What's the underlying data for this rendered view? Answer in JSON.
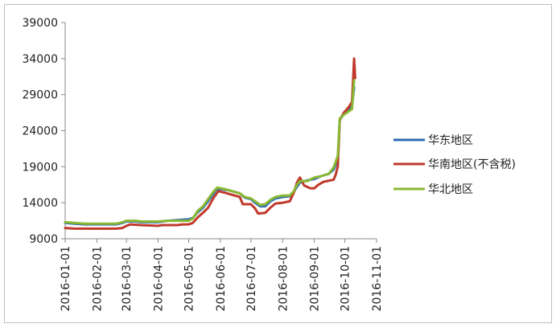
{
  "chart_data": {
    "type": "line",
    "title": "",
    "xlabel": "",
    "ylabel": "",
    "ylim": [
      9000,
      39000
    ],
    "y_ticks": [
      "9000",
      "14000",
      "19000",
      "24000",
      "29000",
      "34000",
      "39000"
    ],
    "x_ticks": [
      "2016-01-01",
      "2016-02-01",
      "2016-03-01",
      "2016-04-01",
      "2016-05-01",
      "2016-06-01",
      "2016-07-01",
      "2016-08-01",
      "2016-09-01",
      "2016-10-01",
      "2016-11-01"
    ],
    "grid": false,
    "legend_position": "right",
    "series": [
      {
        "name": "华东地区",
        "color": "#2e6db4",
        "points": [
          [
            "2016-01-01",
            11200
          ],
          [
            "2016-01-10",
            11100
          ],
          [
            "2016-01-20",
            11000
          ],
          [
            "2016-02-01",
            11000
          ],
          [
            "2016-02-20",
            11000
          ],
          [
            "2016-02-26",
            11200
          ],
          [
            "2016-03-01",
            11400
          ],
          [
            "2016-03-10",
            11400
          ],
          [
            "2016-03-15",
            11300
          ],
          [
            "2016-04-01",
            11300
          ],
          [
            "2016-04-10",
            11500
          ],
          [
            "2016-04-20",
            11600
          ],
          [
            "2016-05-01",
            11700
          ],
          [
            "2016-05-05",
            11900
          ],
          [
            "2016-05-10",
            12700
          ],
          [
            "2016-05-15",
            13300
          ],
          [
            "2016-05-20",
            14200
          ],
          [
            "2016-05-25",
            15200
          ],
          [
            "2016-05-28",
            15800
          ],
          [
            "2016-06-01",
            15900
          ],
          [
            "2016-06-10",
            15700
          ],
          [
            "2016-06-20",
            15300
          ],
          [
            "2016-06-25",
            14700
          ],
          [
            "2016-07-01",
            14500
          ],
          [
            "2016-07-05",
            14000
          ],
          [
            "2016-07-10",
            13500
          ],
          [
            "2016-07-15",
            13500
          ],
          [
            "2016-07-20",
            14200
          ],
          [
            "2016-07-25",
            14600
          ],
          [
            "2016-08-01",
            14800
          ],
          [
            "2016-08-08",
            14900
          ],
          [
            "2016-08-12",
            15500
          ],
          [
            "2016-08-15",
            16200
          ],
          [
            "2016-08-18",
            16800
          ],
          [
            "2016-08-25",
            17100
          ],
          [
            "2016-09-01",
            17300
          ],
          [
            "2016-09-08",
            17700
          ],
          [
            "2016-09-15",
            18000
          ],
          [
            "2016-09-20",
            18600
          ],
          [
            "2016-09-24",
            20000
          ],
          [
            "2016-09-26",
            25500
          ],
          [
            "2016-09-30",
            26300
          ],
          [
            "2016-10-05",
            27000
          ],
          [
            "2016-10-08",
            27500
          ],
          [
            "2016-10-10",
            30000
          ]
        ]
      },
      {
        "name": "华南地区(不含税)",
        "color": "#c0392b",
        "points": [
          [
            "2016-01-01",
            10500
          ],
          [
            "2016-01-10",
            10400
          ],
          [
            "2016-02-01",
            10400
          ],
          [
            "2016-02-20",
            10400
          ],
          [
            "2016-02-26",
            10500
          ],
          [
            "2016-03-01",
            10800
          ],
          [
            "2016-03-05",
            11000
          ],
          [
            "2016-03-15",
            10900
          ],
          [
            "2016-04-01",
            10800
          ],
          [
            "2016-04-05",
            10900
          ],
          [
            "2016-04-20",
            10900
          ],
          [
            "2016-04-25",
            11000
          ],
          [
            "2016-05-01",
            11000
          ],
          [
            "2016-05-05",
            11200
          ],
          [
            "2016-05-10",
            12000
          ],
          [
            "2016-05-15",
            12600
          ],
          [
            "2016-05-20",
            13300
          ],
          [
            "2016-05-25",
            14600
          ],
          [
            "2016-05-30",
            15600
          ],
          [
            "2016-06-05",
            15400
          ],
          [
            "2016-06-15",
            15000
          ],
          [
            "2016-06-20",
            14800
          ],
          [
            "2016-06-23",
            13800
          ],
          [
            "2016-07-01",
            13800
          ],
          [
            "2016-07-05",
            13200
          ],
          [
            "2016-07-08",
            12500
          ],
          [
            "2016-07-15",
            12600
          ],
          [
            "2016-07-20",
            13300
          ],
          [
            "2016-07-25",
            13900
          ],
          [
            "2016-08-01",
            14000
          ],
          [
            "2016-08-08",
            14200
          ],
          [
            "2016-08-12",
            15400
          ],
          [
            "2016-08-15",
            16800
          ],
          [
            "2016-08-18",
            17500
          ],
          [
            "2016-08-22",
            16400
          ],
          [
            "2016-08-28",
            16000
          ],
          [
            "2016-09-01",
            16000
          ],
          [
            "2016-09-05",
            16500
          ],
          [
            "2016-09-10",
            16900
          ],
          [
            "2016-09-20",
            17200
          ],
          [
            "2016-09-22",
            17900
          ],
          [
            "2016-09-24",
            19000
          ],
          [
            "2016-09-26",
            25500
          ],
          [
            "2016-09-30",
            26500
          ],
          [
            "2016-10-05",
            27300
          ],
          [
            "2016-10-08",
            28000
          ],
          [
            "2016-10-10",
            34000
          ],
          [
            "2016-10-11",
            31300
          ]
        ]
      },
      {
        "name": "华北地区",
        "color": "#8ab832",
        "points": [
          [
            "2016-01-01",
            11300
          ],
          [
            "2016-01-10",
            11200
          ],
          [
            "2016-01-20",
            11100
          ],
          [
            "2016-02-01",
            11100
          ],
          [
            "2016-02-20",
            11100
          ],
          [
            "2016-02-26",
            11300
          ],
          [
            "2016-03-01",
            11500
          ],
          [
            "2016-03-10",
            11500
          ],
          [
            "2016-03-15",
            11400
          ],
          [
            "2016-04-01",
            11400
          ],
          [
            "2016-04-10",
            11500
          ],
          [
            "2016-04-20",
            11500
          ],
          [
            "2016-05-01",
            11500
          ],
          [
            "2016-05-05",
            11800
          ],
          [
            "2016-05-10",
            12900
          ],
          [
            "2016-05-15",
            13500
          ],
          [
            "2016-05-20",
            14500
          ],
          [
            "2016-05-25",
            15500
          ],
          [
            "2016-05-29",
            16100
          ],
          [
            "2016-06-05",
            15900
          ],
          [
            "2016-06-15",
            15500
          ],
          [
            "2016-06-20",
            15300
          ],
          [
            "2016-06-25",
            14800
          ],
          [
            "2016-07-01",
            14600
          ],
          [
            "2016-07-05",
            14200
          ],
          [
            "2016-07-10",
            13700
          ],
          [
            "2016-07-15",
            13800
          ],
          [
            "2016-07-20",
            14400
          ],
          [
            "2016-07-25",
            14800
          ],
          [
            "2016-08-01",
            15000
          ],
          [
            "2016-08-08",
            15000
          ],
          [
            "2016-08-12",
            15600
          ],
          [
            "2016-08-15",
            16500
          ],
          [
            "2016-08-18",
            17000
          ],
          [
            "2016-08-25",
            17000
          ],
          [
            "2016-09-01",
            17500
          ],
          [
            "2016-09-08",
            17700
          ],
          [
            "2016-09-15",
            18000
          ],
          [
            "2016-09-20",
            18900
          ],
          [
            "2016-09-24",
            20500
          ],
          [
            "2016-09-26",
            25700
          ],
          [
            "2016-09-30",
            26200
          ],
          [
            "2016-10-05",
            26700
          ],
          [
            "2016-10-08",
            27000
          ],
          [
            "2016-10-10",
            31000
          ]
        ]
      }
    ]
  }
}
